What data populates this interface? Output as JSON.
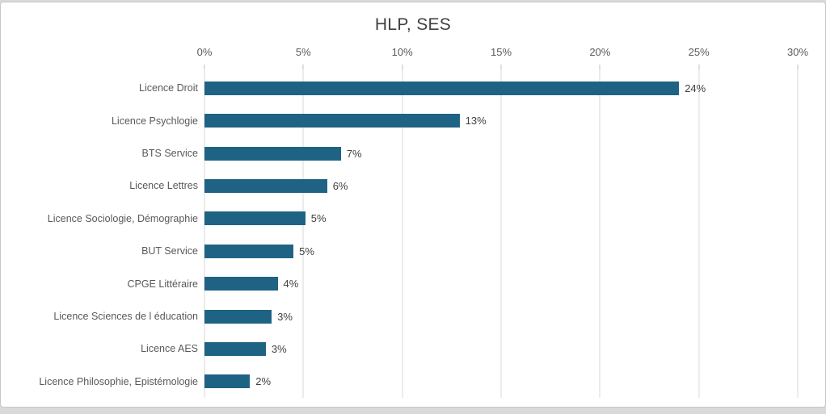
{
  "frame": {
    "background_color": "#d9d9d9",
    "card_background": "#ffffff",
    "card_border_color": "#c9c7c6"
  },
  "chart_data": {
    "type": "bar",
    "orientation": "horizontal",
    "title": "HLP, SES",
    "categories": [
      "Licence Droit",
      "Licence Psychlogie",
      "BTS Service",
      "Licence Lettres",
      "Licence Sociologie, Démographie",
      "BUT Service",
      "CPGE Littéraire",
      "Licence Sciences de l éducation",
      "Licence AES",
      "Licence Philosophie, Epistémologie"
    ],
    "values": [
      24,
      12.9,
      6.9,
      6.2,
      5.1,
      4.5,
      3.7,
      3.4,
      3.1,
      2.3
    ],
    "value_labels": [
      "24%",
      "13%",
      "7%",
      "6%",
      "5%",
      "5%",
      "4%",
      "3%",
      "3%",
      "2%"
    ],
    "x_ticks": [
      "0%",
      "5%",
      "10%",
      "15%",
      "20%",
      "25%",
      "30%"
    ],
    "xlim": [
      0,
      30
    ],
    "grid": true,
    "legend": false,
    "bar_color": "#1f6384",
    "title_color": "#404040",
    "axis_text_color": "#595959",
    "data_label_color": "#404040",
    "gridline_color": "#d9d9d9"
  }
}
